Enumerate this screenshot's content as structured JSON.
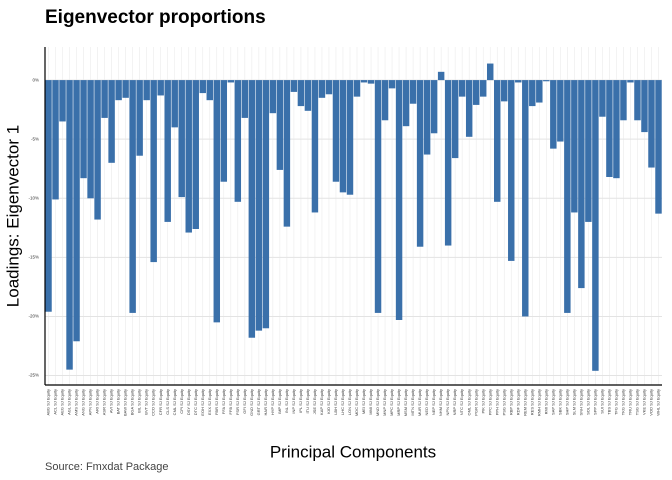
{
  "chart_data": {
    "type": "bar",
    "title": "Eigenvector proportions",
    "x_label": "Principal Components",
    "y_label": "Loadings: Eigenvector 1",
    "caption": "Source: Fmxdat Package",
    "color": "#3a70aa",
    "grid": true,
    "categories": [
      "ABG SJ Equity",
      "ACL SJ Equity",
      "AEG SJ Equity",
      "AGL SJ Equity",
      "AMS SJ Equity",
      "ANG SJ Equity",
      "APN SJ Equity",
      "ARI SJ Equity",
      "ASR SJ Equity",
      "AVI SJ Equity",
      "BAT SJ Equity",
      "BAW SJ Equity",
      "BGA SJ Equity",
      "BIL SJ Equity",
      "BVT SJ Equity",
      "CCO SJ Equity",
      "CFR SJ Equity",
      "CLS SJ Equity",
      "CML SJ Equity",
      "CPI SJ Equity",
      "DSY SJ Equity",
      "DTC SJ Equity",
      "EOH SJ Equity",
      "EXX SJ Equity",
      "FBR SJ Equity",
      "FFA SJ Equity",
      "FFB SJ Equity",
      "FSR SJ Equity",
      "GFI SJ Equity",
      "GND SJ Equity",
      "GRT SJ Equity",
      "HAR SJ Equity",
      "HYP SJ Equity",
      "IMP SJ Equity",
      "INL SJ Equity",
      "INP SJ Equity",
      "IPL SJ Equity",
      "ITU SJ Equity",
      "JSE SJ Equity",
      "KAP SJ Equity",
      "KIO SJ Equity",
      "LBH SJ Equity",
      "LHC SJ Equity",
      "LON SJ Equity",
      "MDC SJ Equity",
      "MEI SJ Equity",
      "MMI SJ Equity",
      "MND SJ Equity",
      "MNP SJ Equity",
      "MPC SJ Equity",
      "MRP SJ Equity",
      "MSM SJ Equity",
      "MTN SJ Equity",
      "MUR SJ Equity",
      "NED SJ Equity",
      "NEP SJ Equity",
      "NHM SJ Equity",
      "NPN SJ Equity",
      "NRP SJ Equity",
      "NTC SJ Equity",
      "OML SJ Equity",
      "PGR SJ Equity",
      "PIK SJ Equity",
      "PPC SJ Equity",
      "PPH SJ Equity",
      "PSG SJ Equity",
      "RBP SJ Equity",
      "RDF SJ Equity",
      "REM SJ Equity",
      "RES SJ Equity",
      "RMH SJ Equity",
      "RMI SJ Equity",
      "SAP SJ Equity",
      "SBK SJ Equity",
      "SHP SJ Equity",
      "SLM SJ Equity",
      "SNH SJ Equity",
      "SOL SJ Equity",
      "SPP SJ Equity",
      "SUI SJ Equity",
      "TBS SJ Equity",
      "TFG SJ Equity",
      "TKG SJ Equity",
      "TRU SJ Equity",
      "TSG SJ Equity",
      "VKE SJ Equity",
      "VOD SJ Equity",
      "WHL SJ Equity"
    ],
    "values": [
      -19.6,
      -10.1,
      -3.5,
      -24.5,
      -22.1,
      -8.3,
      -10.0,
      -11.8,
      -3.2,
      -7.0,
      -1.7,
      -1.5,
      -19.7,
      -6.4,
      -1.7,
      -15.4,
      -1.3,
      -12.0,
      -4.0,
      -9.9,
      -12.9,
      -12.6,
      -1.1,
      -1.7,
      -20.5,
      -8.6,
      -0.2,
      -10.3,
      -3.2,
      -21.8,
      -21.2,
      -21.0,
      -2.8,
      -7.6,
      -12.4,
      -1.0,
      -2.2,
      -2.6,
      -11.2,
      -1.5,
      -1.2,
      -8.6,
      -9.5,
      -9.7,
      -1.4,
      -0.2,
      -0.3,
      -19.7,
      -3.4,
      -0.7,
      -20.3,
      -3.9,
      -2.0,
      -14.1,
      -6.3,
      -4.5,
      0.7,
      -14.0,
      -6.6,
      -1.4,
      -4.8,
      -2.1,
      -1.4,
      1.4,
      -10.3,
      -1.8,
      -15.3,
      -0.2,
      -20.0,
      -2.2,
      -1.9,
      -0.1,
      -5.8,
      -5.2,
      -19.7,
      -11.2,
      -17.6,
      -12.0,
      -24.6,
      -3.1,
      -8.2,
      -8.3,
      -3.4,
      -0.2,
      -3.4,
      -4.4,
      -7.4,
      -11.3
    ],
    "ylim": [
      -25.8,
      2.8
    ],
    "yticks": [
      {
        "value": 0,
        "label": "0%"
      },
      {
        "value": -5,
        "label": "-5%"
      },
      {
        "value": -10,
        "label": "-10%"
      },
      {
        "value": -15,
        "label": "-15%"
      },
      {
        "value": -20,
        "label": "-20%"
      },
      {
        "value": -25,
        "label": "-25%"
      }
    ]
  }
}
